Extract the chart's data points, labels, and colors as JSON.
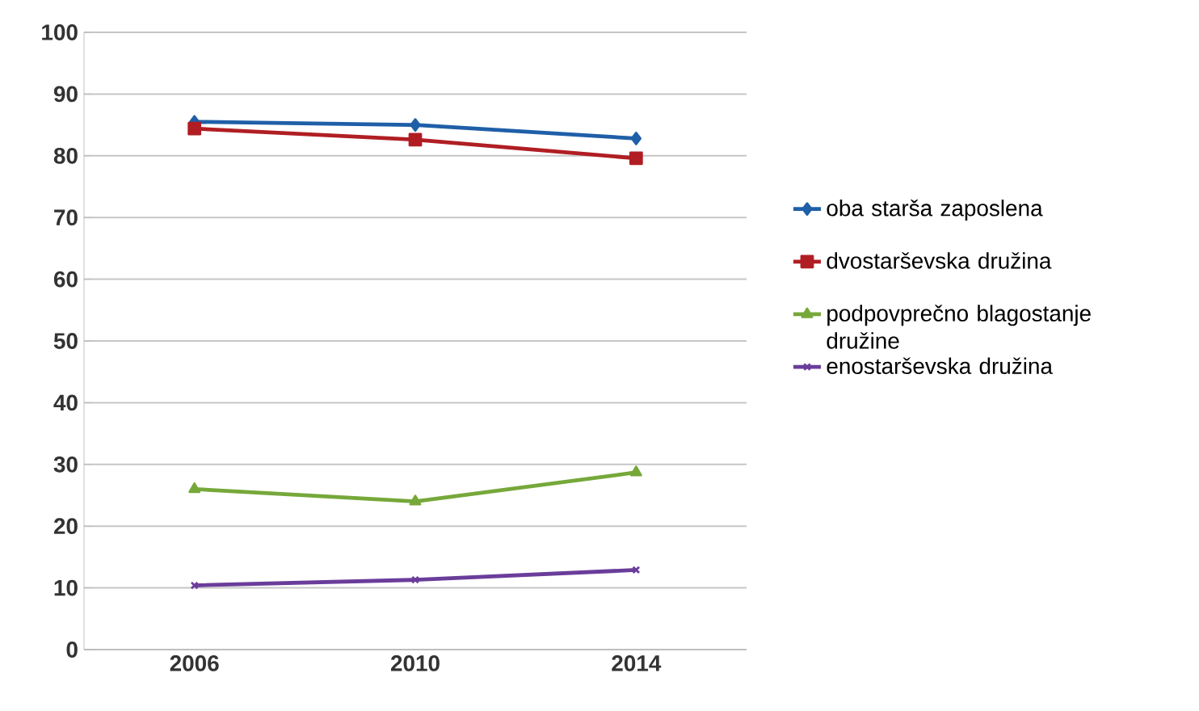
{
  "chart_data": {
    "type": "line",
    "categories": [
      "2006",
      "2010",
      "2014"
    ],
    "series": [
      {
        "name": "oba starša zaposlena",
        "color": "#1f5fa8",
        "marker": "diamond",
        "values": [
          85.5,
          85,
          82.8
        ]
      },
      {
        "name": "dvostarševska družina",
        "color": "#b01e23",
        "marker": "square",
        "values": [
          84.4,
          82.6,
          79.6
        ]
      },
      {
        "name": "podpovprečno blagostanje družine",
        "color": "#76a83a",
        "marker": "triangle",
        "values": [
          26,
          24,
          28.7
        ]
      },
      {
        "name": "enostarševska družina",
        "color": "#6a3d9a",
        "marker": "cross",
        "values": [
          10.4,
          11.3,
          12.9
        ]
      }
    ],
    "ylim": [
      0,
      100
    ],
    "yticks": [
      0,
      10,
      20,
      30,
      40,
      50,
      60,
      70,
      80,
      90,
      100
    ],
    "grid": "y",
    "legend": "right",
    "line_style": "solid"
  }
}
